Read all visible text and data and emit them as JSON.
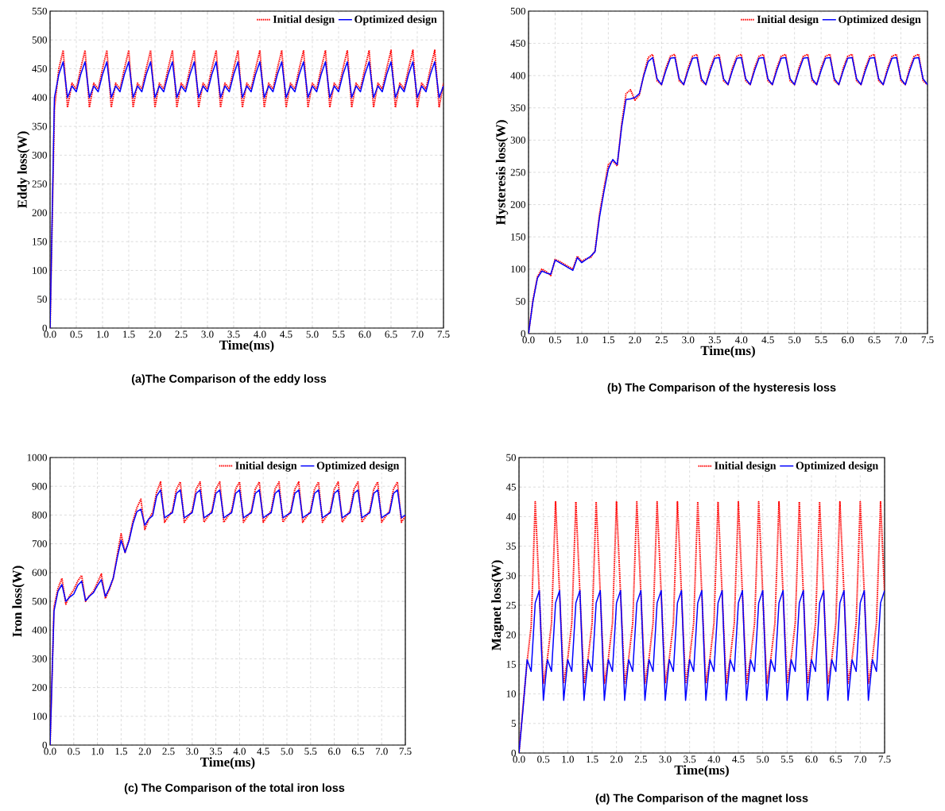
{
  "chart_data": [
    {
      "type": "line",
      "title": "(a)The Comparison of the eddy loss",
      "xlabel": "Time(ms)",
      "ylabel": "Eddy loss(W)",
      "grid": true,
      "legend": "top right",
      "marker": "none",
      "xlim": [
        0,
        7.5
      ],
      "ylim": [
        0,
        550
      ],
      "xticks": [
        {
          "value": 0,
          "label": "0.0"
        },
        {
          "value": 0.5,
          "label": "0.5"
        },
        {
          "value": 1,
          "label": "1.0"
        },
        {
          "value": 1.5,
          "label": "1.5"
        },
        {
          "value": 2,
          "label": "2.0"
        },
        {
          "value": 2.5,
          "label": "2.5"
        },
        {
          "value": 3,
          "label": "3.0"
        },
        {
          "value": 3.5,
          "label": "3.5"
        },
        {
          "value": 4,
          "label": "4.0"
        },
        {
          "value": 4.5,
          "label": "4.5"
        },
        {
          "value": 5,
          "label": "5.0"
        },
        {
          "value": 5.5,
          "label": "5.5"
        },
        {
          "value": 6,
          "label": "6.0"
        },
        {
          "value": 6.5,
          "label": "6.5"
        },
        {
          "value": 7,
          "label": "7.0"
        },
        {
          "value": 7.5,
          "label": "7.5"
        }
      ],
      "yticks": [
        0,
        50,
        100,
        150,
        200,
        250,
        300,
        350,
        400,
        450,
        500,
        550
      ],
      "x": [
        0,
        0.083,
        0.167,
        0.25,
        0.333,
        0.417,
        0.5,
        0.583,
        0.667,
        0.75,
        0.833,
        0.917,
        1,
        1.083,
        1.167,
        1.25,
        1.333,
        1.417,
        1.5,
        1.583,
        1.667,
        1.75,
        1.833,
        1.917,
        2,
        2.083,
        2.167,
        2.25,
        2.333,
        2.417,
        2.5,
        2.583,
        2.667,
        2.75,
        2.833,
        2.917,
        3,
        3.083,
        3.167,
        3.25,
        3.333,
        3.417,
        3.5,
        3.583,
        3.667,
        3.75,
        3.833,
        3.917,
        4,
        4.083,
        4.167,
        4.25,
        4.333,
        4.417,
        4.5,
        4.583,
        4.667,
        4.75,
        4.833,
        4.917,
        5,
        5.083,
        5.167,
        5.25,
        5.333,
        5.417,
        5.5,
        5.583,
        5.667,
        5.75,
        5.833,
        5.917,
        6,
        6.083,
        6.167,
        6.25,
        6.333,
        6.417,
        6.5,
        6.583,
        6.667,
        6.75,
        6.833,
        6.917,
        7,
        7.083,
        7.167,
        7.25,
        7.333,
        7.417,
        7.5
      ],
      "series": [
        {
          "name": "Initial design",
          "color": "#ff0000",
          "line_style": "dotted",
          "values": [
            0,
            380,
            450,
            482,
            383,
            425,
            415,
            450,
            482,
            383,
            425,
            415,
            450,
            482,
            383,
            425,
            415,
            450,
            482,
            383,
            425,
            415,
            450,
            482,
            383,
            425,
            415,
            450,
            482,
            383,
            425,
            415,
            450,
            482,
            383,
            425,
            415,
            450,
            482,
            383,
            425,
            415,
            450,
            482,
            383,
            425,
            415,
            450,
            482,
            383,
            425,
            415,
            450,
            482,
            383,
            425,
            415,
            450,
            482,
            383,
            425,
            415,
            450,
            482,
            383,
            425,
            415,
            450,
            482,
            383,
            425,
            415,
            450,
            482,
            383,
            425,
            415,
            450,
            482,
            383,
            425,
            415,
            450,
            482,
            383,
            425,
            415,
            450,
            482,
            383,
            425
          ]
        },
        {
          "name": "Optimized design",
          "color": "#0000ff",
          "line_style": "solid",
          "values": [
            0,
            400,
            440,
            462,
            400,
            420,
            410,
            440,
            462,
            400,
            420,
            410,
            440,
            462,
            400,
            420,
            410,
            440,
            462,
            400,
            420,
            410,
            440,
            462,
            400,
            420,
            410,
            440,
            462,
            400,
            420,
            410,
            440,
            462,
            400,
            420,
            410,
            440,
            462,
            400,
            420,
            410,
            440,
            462,
            400,
            420,
            410,
            440,
            462,
            400,
            420,
            410,
            440,
            462,
            400,
            420,
            410,
            440,
            462,
            400,
            420,
            410,
            440,
            462,
            400,
            420,
            410,
            440,
            462,
            400,
            420,
            410,
            440,
            462,
            400,
            420,
            410,
            440,
            462,
            400,
            420,
            410,
            440,
            462,
            400,
            420,
            410,
            440,
            462,
            400,
            420
          ]
        }
      ]
    },
    {
      "type": "line",
      "title": "(b) The Comparison of the hysteresis loss",
      "xlabel": "Time(ms)",
      "ylabel": "Hysteresis loss(W)",
      "grid": true,
      "legend": "top right",
      "marker": "none",
      "xlim": [
        0,
        7.5
      ],
      "ylim": [
        0,
        500
      ],
      "xticks": [
        {
          "value": 0,
          "label": "0.0"
        },
        {
          "value": 0.5,
          "label": "0.5"
        },
        {
          "value": 1,
          "label": "1.0"
        },
        {
          "value": 1.5,
          "label": "1.5"
        },
        {
          "value": 2,
          "label": "2.0"
        },
        {
          "value": 2.5,
          "label": "2.5"
        },
        {
          "value": 3,
          "label": "3.0"
        },
        {
          "value": 3.5,
          "label": "3.5"
        },
        {
          "value": 4,
          "label": "4.0"
        },
        {
          "value": 4.5,
          "label": "4.5"
        },
        {
          "value": 5,
          "label": "5.0"
        },
        {
          "value": 5.5,
          "label": "5.5"
        },
        {
          "value": 6,
          "label": "6.0"
        },
        {
          "value": 6.5,
          "label": "6.5"
        },
        {
          "value": 7,
          "label": "7.0"
        },
        {
          "value": 7.5,
          "label": "7.5"
        }
      ],
      "yticks": [
        0,
        50,
        100,
        150,
        200,
        250,
        300,
        350,
        400,
        450,
        500
      ],
      "x": [
        0,
        0.083,
        0.167,
        0.25,
        0.333,
        0.417,
        0.5,
        0.583,
        0.667,
        0.75,
        0.833,
        0.917,
        1,
        1.083,
        1.167,
        1.25,
        1.333,
        1.417,
        1.5,
        1.583,
        1.667,
        1.75,
        1.833,
        1.917,
        2,
        2.083,
        2.167,
        2.25,
        2.333,
        2.417,
        2.5,
        2.583,
        2.667,
        2.75,
        2.833,
        2.917,
        3,
        3.083,
        3.167,
        3.25,
        3.333,
        3.417,
        3.5,
        3.583,
        3.667,
        3.75,
        3.833,
        3.917,
        4,
        4.083,
        4.167,
        4.25,
        4.333,
        4.417,
        4.5,
        4.583,
        4.667,
        4.75,
        4.833,
        4.917,
        5,
        5.083,
        5.167,
        5.25,
        5.333,
        5.417,
        5.5,
        5.583,
        5.667,
        5.75,
        5.833,
        5.917,
        6,
        6.083,
        6.167,
        6.25,
        6.333,
        6.417,
        6.5,
        6.583,
        6.667,
        6.75,
        6.833,
        6.917,
        7,
        7.083,
        7.167,
        7.25,
        7.333,
        7.417,
        7.5
      ],
      "series": [
        {
          "name": "Initial design",
          "color": "#ff0000",
          "line_style": "dotted",
          "values": [
            0,
            52,
            88,
            100,
            96,
            90,
            115,
            112,
            108,
            104,
            100,
            120,
            112,
            116,
            118,
            128,
            185,
            225,
            262,
            268,
            260,
            325,
            372,
            378,
            362,
            370,
            402,
            428,
            433,
            392,
            386,
            412,
            430,
            433,
            392,
            386,
            412,
            430,
            433,
            392,
            386,
            412,
            430,
            433,
            392,
            386,
            412,
            430,
            433,
            392,
            386,
            412,
            430,
            433,
            392,
            386,
            412,
            430,
            433,
            392,
            386,
            412,
            430,
            433,
            392,
            386,
            412,
            430,
            433,
            392,
            386,
            412,
            430,
            433,
            392,
            386,
            412,
            430,
            433,
            392,
            386,
            412,
            430,
            433,
            392,
            386,
            412,
            430,
            433,
            392,
            386
          ]
        },
        {
          "name": "Optimized design",
          "color": "#0000ff",
          "line_style": "solid",
          "values": [
            0,
            50,
            86,
            97,
            94,
            92,
            114,
            110,
            106,
            102,
            98,
            118,
            110,
            115,
            120,
            127,
            180,
            220,
            255,
            270,
            262,
            320,
            363,
            364,
            366,
            372,
            400,
            422,
            428,
            395,
            386,
            408,
            427,
            428,
            395,
            386,
            408,
            427,
            428,
            395,
            386,
            408,
            427,
            428,
            395,
            386,
            408,
            427,
            428,
            395,
            386,
            408,
            427,
            428,
            395,
            386,
            408,
            427,
            428,
            395,
            386,
            408,
            427,
            428,
            395,
            386,
            408,
            427,
            428,
            395,
            386,
            408,
            427,
            428,
            395,
            386,
            408,
            427,
            428,
            395,
            386,
            408,
            427,
            428,
            395,
            386,
            408,
            427,
            428,
            395,
            386
          ]
        }
      ]
    },
    {
      "type": "line",
      "title": "(c) The Comparison of the total iron loss",
      "xlabel": "Time(ms)",
      "ylabel": "Iron loss(W)",
      "grid": true,
      "legend": "top right",
      "marker": "none",
      "xlim": [
        0,
        7.5
      ],
      "ylim": [
        0,
        1000
      ],
      "xticks": [
        {
          "value": 0,
          "label": "0.0"
        },
        {
          "value": 0.5,
          "label": "0.5"
        },
        {
          "value": 1,
          "label": "1.0"
        },
        {
          "value": 1.5,
          "label": "1.5"
        },
        {
          "value": 2,
          "label": "2.0"
        },
        {
          "value": 2.5,
          "label": "2.5"
        },
        {
          "value": 3,
          "label": "3.0"
        },
        {
          "value": 3.5,
          "label": "3.5"
        },
        {
          "value": 4,
          "label": "4.0"
        },
        {
          "value": 4.5,
          "label": "4.5"
        },
        {
          "value": 5,
          "label": "5.0"
        },
        {
          "value": 5.5,
          "label": "5.5"
        },
        {
          "value": 6,
          "label": "6.0"
        },
        {
          "value": 6.5,
          "label": "6.5"
        },
        {
          "value": 7,
          "label": "7.0"
        },
        {
          "value": 7.5,
          "label": "7.5"
        }
      ],
      "yticks": [
        0,
        100,
        200,
        300,
        400,
        500,
        600,
        700,
        800,
        900,
        1000
      ],
      "x": [
        0,
        0.083,
        0.167,
        0.25,
        0.333,
        0.417,
        0.5,
        0.583,
        0.667,
        0.75,
        0.833,
        0.917,
        1,
        1.083,
        1.167,
        1.25,
        1.333,
        1.417,
        1.5,
        1.583,
        1.667,
        1.75,
        1.833,
        1.917,
        2,
        2.083,
        2.167,
        2.25,
        2.333,
        2.417,
        2.5,
        2.583,
        2.667,
        2.75,
        2.833,
        2.917,
        3,
        3.083,
        3.167,
        3.25,
        3.333,
        3.417,
        3.5,
        3.583,
        3.667,
        3.75,
        3.833,
        3.917,
        4,
        4.083,
        4.167,
        4.25,
        4.333,
        4.417,
        4.5,
        4.583,
        4.667,
        4.75,
        4.833,
        4.917,
        5,
        5.083,
        5.167,
        5.25,
        5.333,
        5.417,
        5.5,
        5.583,
        5.667,
        5.75,
        5.833,
        5.917,
        6,
        6.083,
        6.167,
        6.25,
        6.333,
        6.417,
        6.5,
        6.583,
        6.667,
        6.75,
        6.833,
        6.917,
        7,
        7.083,
        7.167,
        7.25,
        7.333,
        7.417,
        7.5
      ],
      "series": [
        {
          "name": "Initial design",
          "color": "#ff0000",
          "line_style": "dotted",
          "values": [
            0,
            480,
            545,
            580,
            490,
            520,
            540,
            570,
            590,
            500,
            520,
            535,
            565,
            595,
            510,
            540,
            580,
            660,
            735,
            670,
            715,
            780,
            825,
            855,
            750,
            785,
            810,
            880,
            915,
            775,
            795,
            815,
            890,
            915,
            775,
            795,
            815,
            890,
            915,
            775,
            795,
            815,
            890,
            915,
            775,
            795,
            815,
            890,
            915,
            775,
            795,
            815,
            890,
            915,
            775,
            795,
            815,
            890,
            915,
            775,
            795,
            815,
            890,
            915,
            775,
            795,
            815,
            890,
            915,
            775,
            795,
            815,
            890,
            915,
            775,
            795,
            815,
            890,
            915,
            775,
            795,
            815,
            890,
            915,
            775,
            795,
            815,
            890,
            915,
            775,
            795
          ]
        },
        {
          "name": "Optimized design",
          "color": "#0000ff",
          "line_style": "solid",
          "values": [
            0,
            466,
            535,
            558,
            500,
            515,
            525,
            555,
            570,
            502,
            518,
            530,
            555,
            575,
            517,
            545,
            580,
            650,
            712,
            670,
            710,
            770,
            812,
            820,
            765,
            786,
            798,
            866,
            887,
            790,
            800,
            808,
            875,
            887,
            790,
            800,
            808,
            875,
            887,
            790,
            800,
            808,
            875,
            887,
            790,
            800,
            808,
            875,
            887,
            790,
            800,
            808,
            875,
            887,
            790,
            800,
            808,
            875,
            887,
            790,
            800,
            808,
            875,
            887,
            790,
            800,
            808,
            875,
            887,
            790,
            800,
            808,
            875,
            887,
            790,
            800,
            808,
            875,
            887,
            790,
            800,
            808,
            875,
            887,
            790,
            800,
            808,
            875,
            887,
            790,
            800
          ]
        }
      ]
    },
    {
      "type": "line",
      "title": "(d) The Comparison of the magnet loss",
      "xlabel": "Time(ms)",
      "ylabel": "Magnet loss(W)",
      "grid": true,
      "legend": "top right",
      "marker": "none",
      "xlim": [
        0,
        7.5
      ],
      "ylim": [
        0,
        50
      ],
      "xticks": [
        {
          "value": 0,
          "label": "0.0"
        },
        {
          "value": 0.5,
          "label": "0.5"
        },
        {
          "value": 1,
          "label": "1.0"
        },
        {
          "value": 1.5,
          "label": "1.5"
        },
        {
          "value": 2,
          "label": "2.0"
        },
        {
          "value": 2.5,
          "label": "2.5"
        },
        {
          "value": 3,
          "label": "3.0"
        },
        {
          "value": 3.5,
          "label": "3.5"
        },
        {
          "value": 4,
          "label": "4.0"
        },
        {
          "value": 4.5,
          "label": "4.5"
        },
        {
          "value": 5,
          "label": "5.0"
        },
        {
          "value": 5.5,
          "label": "5.5"
        },
        {
          "value": 6,
          "label": "6.0"
        },
        {
          "value": 6.5,
          "label": "6.5"
        },
        {
          "value": 7,
          "label": "7.0"
        },
        {
          "value": 7.5,
          "label": "7.5"
        }
      ],
      "yticks": [
        0,
        5,
        10,
        15,
        20,
        25,
        30,
        35,
        40,
        45,
        50
      ],
      "x": [
        0,
        0.083,
        0.167,
        0.25,
        0.333,
        0.417,
        0.5,
        0.583,
        0.667,
        0.75,
        0.833,
        0.917,
        1,
        1.083,
        1.167,
        1.25,
        1.333,
        1.417,
        1.5,
        1.583,
        1.667,
        1.75,
        1.833,
        1.917,
        2,
        2.083,
        2.167,
        2.25,
        2.333,
        2.417,
        2.5,
        2.583,
        2.667,
        2.75,
        2.833,
        2.917,
        3,
        3.083,
        3.167,
        3.25,
        3.333,
        3.417,
        3.5,
        3.583,
        3.667,
        3.75,
        3.833,
        3.917,
        4,
        4.083,
        4.167,
        4.25,
        4.333,
        4.417,
        4.5,
        4.583,
        4.667,
        4.75,
        4.833,
        4.917,
        5,
        5.083,
        5.167,
        5.25,
        5.333,
        5.417,
        5.5,
        5.583,
        5.667,
        5.75,
        5.833,
        5.917,
        6,
        6.083,
        6.167,
        6.25,
        6.333,
        6.417,
        6.5,
        6.583,
        6.667,
        6.75,
        6.833,
        6.917,
        7,
        7.083,
        7.167,
        7.25,
        7.333,
        7.417,
        7.5
      ],
      "series": [
        {
          "name": "Initial design",
          "color": "#ff0000",
          "line_style": "dotted",
          "values": [
            0,
            8,
            15.5,
            21.5,
            42.5,
            27,
            11.8,
            16,
            22,
            42.5,
            27,
            11.8,
            16,
            22,
            42.5,
            27,
            11.8,
            16,
            22,
            42.5,
            27,
            11.8,
            16,
            22,
            42.5,
            27,
            11.8,
            16,
            22,
            42.5,
            27,
            11.8,
            16,
            22,
            42.5,
            27,
            11.8,
            16,
            22,
            42.5,
            27,
            11.8,
            16,
            22,
            42.5,
            27,
            11.8,
            16,
            22,
            42.5,
            27,
            11.8,
            16,
            22,
            42.5,
            27,
            11.8,
            16,
            22,
            42.5,
            27,
            11.8,
            16,
            22,
            42.5,
            27,
            11.8,
            16,
            22,
            42.5,
            27,
            11.8,
            16,
            22,
            42.5,
            27,
            11.8,
            16,
            22,
            42.5,
            27,
            11.8,
            16,
            22,
            42.5,
            27,
            11.8,
            16,
            22,
            42.5,
            27
          ]
        },
        {
          "name": "Optimized design",
          "color": "#0000ff",
          "line_style": "solid",
          "values": [
            0,
            7.5,
            15.8,
            13.8,
            25.4,
            27.5,
            8.9,
            15.8,
            13.8,
            25.4,
            27.5,
            8.9,
            15.8,
            13.8,
            25.4,
            27.5,
            8.9,
            15.8,
            13.8,
            25.4,
            27.5,
            8.9,
            15.8,
            13.8,
            25.4,
            27.5,
            8.9,
            15.8,
            13.8,
            25.4,
            27.5,
            8.9,
            15.8,
            13.8,
            25.4,
            27.5,
            8.9,
            15.8,
            13.8,
            25.4,
            27.5,
            8.9,
            15.8,
            13.8,
            25.4,
            27.5,
            8.9,
            15.8,
            13.8,
            25.4,
            27.5,
            8.9,
            15.8,
            13.8,
            25.4,
            27.5,
            8.9,
            15.8,
            13.8,
            25.4,
            27.5,
            8.9,
            15.8,
            13.8,
            25.4,
            27.5,
            8.9,
            15.8,
            13.8,
            25.4,
            27.5,
            8.9,
            15.8,
            13.8,
            25.4,
            27.5,
            8.9,
            15.8,
            13.8,
            25.4,
            27.5,
            8.9,
            15.8,
            13.8,
            25.4,
            27.5,
            8.9,
            15.8,
            13.8,
            25.4,
            27.5
          ]
        }
      ]
    }
  ]
}
